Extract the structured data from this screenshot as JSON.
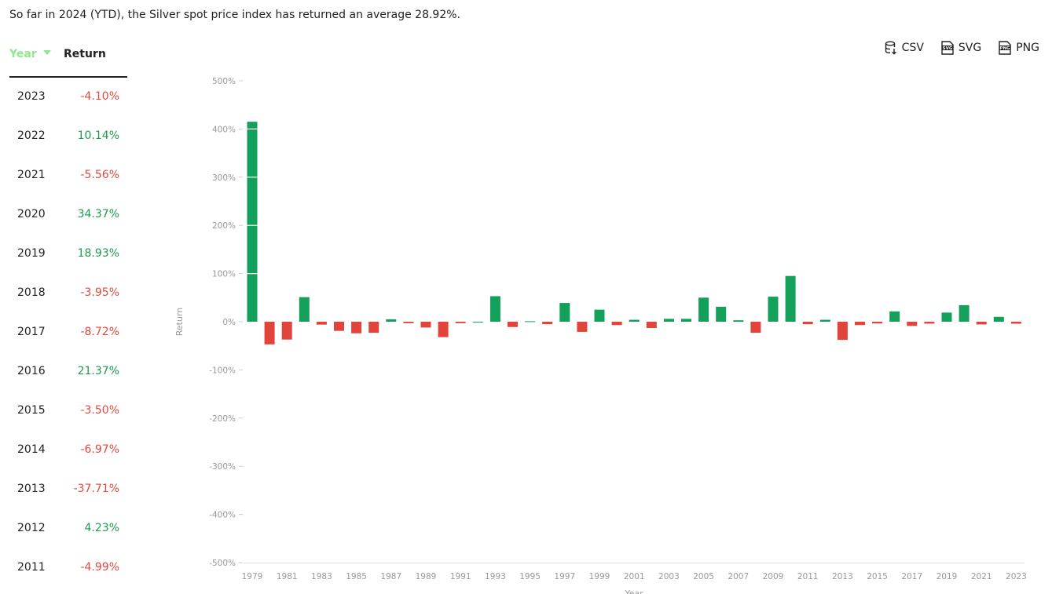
{
  "summary": "So far in 2024 (YTD), the Silver spot price index has returned an average 28.92%.",
  "table": {
    "headers": {
      "year": "Year",
      "return": "Return"
    },
    "rows": [
      {
        "year": "2023",
        "ret": "-4.10%",
        "sign": "neg"
      },
      {
        "year": "2022",
        "ret": "10.14%",
        "sign": "pos"
      },
      {
        "year": "2021",
        "ret": "-5.56%",
        "sign": "neg"
      },
      {
        "year": "2020",
        "ret": "34.37%",
        "sign": "pos"
      },
      {
        "year": "2019",
        "ret": "18.93%",
        "sign": "pos"
      },
      {
        "year": "2018",
        "ret": "-3.95%",
        "sign": "neg"
      },
      {
        "year": "2017",
        "ret": "-8.72%",
        "sign": "neg"
      },
      {
        "year": "2016",
        "ret": "21.37%",
        "sign": "pos"
      },
      {
        "year": "2015",
        "ret": "-3.50%",
        "sign": "neg"
      },
      {
        "year": "2014",
        "ret": "-6.97%",
        "sign": "neg"
      },
      {
        "year": "2013",
        "ret": "-37.71%",
        "sign": "neg"
      },
      {
        "year": "2012",
        "ret": "4.23%",
        "sign": "pos"
      },
      {
        "year": "2011",
        "ret": "-4.99%",
        "sign": "neg"
      }
    ]
  },
  "exports": {
    "csv": "CSV",
    "svg": "SVG",
    "png": "PNG"
  },
  "colors": {
    "positive": "#13a05a",
    "negative": "#e0443a",
    "accent": "#8ee88e"
  },
  "icons": {
    "csv": "database-download-icon",
    "svg": "svg-file-icon",
    "png": "png-file-icon"
  },
  "chart_data": {
    "type": "bar",
    "xlabel": "Year",
    "ylabel": "Return",
    "ylim": [
      -500,
      500
    ],
    "yticks": [
      500,
      400,
      300,
      200,
      100,
      0,
      -100,
      -200,
      -300,
      -400,
      -500
    ],
    "ytick_labels": [
      "500%",
      "400%",
      "300%",
      "200%",
      "100%",
      "0%",
      "-100%",
      "-200%",
      "-300%",
      "-400%",
      "-500%"
    ],
    "x_tick_labels": [
      "1979",
      "1981",
      "1983",
      "1985",
      "1987",
      "1989",
      "1991",
      "1993",
      "1995",
      "1997",
      "1999",
      "2001",
      "2003",
      "2005",
      "2007",
      "2009",
      "2011",
      "2013",
      "2015",
      "2017",
      "2019",
      "2021",
      "2023"
    ],
    "categories": [
      "1979",
      "1980",
      "1981",
      "1982",
      "1983",
      "1984",
      "1985",
      "1986",
      "1987",
      "1988",
      "1989",
      "1990",
      "1991",
      "1992",
      "1993",
      "1994",
      "1995",
      "1996",
      "1997",
      "1998",
      "1999",
      "2000",
      "2001",
      "2002",
      "2003",
      "2004",
      "2005",
      "2006",
      "2007",
      "2008",
      "2009",
      "2010",
      "2011",
      "2012",
      "2013",
      "2014",
      "2015",
      "2016",
      "2017",
      "2018",
      "2019",
      "2020",
      "2021",
      "2022",
      "2023"
    ],
    "values": [
      415,
      -47,
      -37,
      51,
      -6,
      -19,
      -24,
      -23,
      5,
      -3,
      -12,
      -32,
      -3,
      0,
      53,
      -11,
      1,
      -5,
      39,
      -21,
      25,
      -7,
      4,
      -13,
      6,
      6,
      50,
      31,
      3,
      -23,
      52,
      95,
      -5,
      4,
      -37.71,
      -6.97,
      -3.5,
      21.37,
      -8.72,
      -3.95,
      18.93,
      34.37,
      -5.56,
      10.14,
      -4.1
    ]
  }
}
